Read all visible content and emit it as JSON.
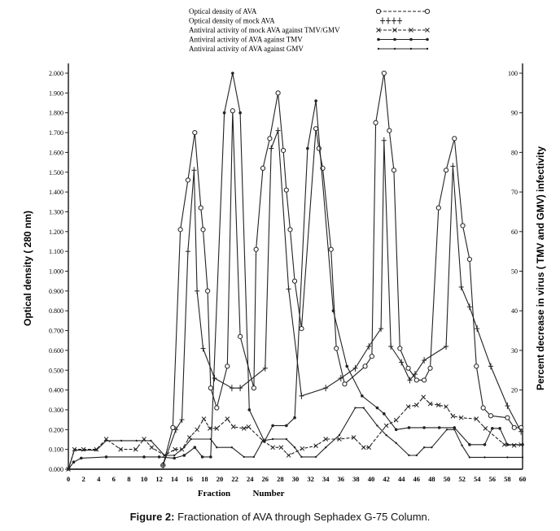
{
  "caption": {
    "label": "Figure 2:",
    "text": "Fractionation of AVA through Sephadex G-75 Column."
  },
  "chart_data": {
    "type": "line",
    "title": "",
    "xlabel": "Fraction Number",
    "xlabel_parts": [
      "Fraction",
      "Number"
    ],
    "ylabel": "Optical density ( 280 nm)",
    "y2label": "Percent decrease in virus ( TMV and GMV) infectivity",
    "xlim": [
      0,
      60
    ],
    "ylim": [
      0,
      2.0
    ],
    "y2lim": [
      0,
      100
    ],
    "x_ticks": [
      "0",
      "2",
      "4",
      "6",
      "8",
      "10",
      "12",
      "14",
      "16",
      "18",
      "20",
      "22",
      "24",
      "26",
      "28",
      "30",
      "32",
      "34",
      "36",
      "38",
      "40",
      "42",
      "44",
      "46",
      "48",
      "50",
      "52",
      "54",
      "56",
      "58",
      "60"
    ],
    "y_ticks": [
      "0.000",
      "0.100",
      "0.200",
      "0.300",
      "0.400",
      "0.500",
      "0.600",
      "0.700",
      "0.800",
      "0.900",
      "1.000",
      "1.100",
      "1.200",
      "1.300",
      "1.400",
      "1.500",
      "1.600",
      "1.700",
      "1.800",
      "1.900",
      "2.000"
    ],
    "y2_ticks": [
      "20",
      "30",
      "40",
      "50",
      "60",
      "70",
      "80",
      "90",
      "100"
    ],
    "legend_position": "top",
    "grid": false,
    "series": [
      {
        "name": "Optical density of AVA",
        "axis": "left",
        "marker": "circle",
        "dash": false,
        "points": [
          [
            12.5,
            0.02
          ],
          [
            13.8,
            0.21
          ],
          [
            14.8,
            1.21
          ],
          [
            15.8,
            1.46
          ],
          [
            16.7,
            1.7
          ],
          [
            17.5,
            1.32
          ],
          [
            17.8,
            1.21
          ],
          [
            18.4,
            0.9
          ],
          [
            18.8,
            0.41
          ],
          [
            19.6,
            0.31
          ],
          [
            21,
            0.52
          ],
          [
            21.7,
            1.81
          ],
          [
            22.7,
            0.67
          ],
          [
            24.5,
            0.41
          ],
          [
            24.8,
            1.11
          ],
          [
            25.7,
            1.52
          ],
          [
            26.6,
            1.67
          ],
          [
            27.7,
            1.9
          ],
          [
            28.4,
            1.61
          ],
          [
            28.8,
            1.41
          ],
          [
            29.3,
            1.21
          ],
          [
            29.9,
            0.95
          ],
          [
            30.8,
            0.71
          ],
          [
            32.7,
            1.72
          ],
          [
            33.1,
            1.62
          ],
          [
            33.6,
            1.52
          ],
          [
            34.7,
            1.11
          ],
          [
            35.4,
            0.61
          ],
          [
            36.5,
            0.43
          ],
          [
            39.2,
            0.52
          ],
          [
            40.1,
            0.57
          ],
          [
            40.6,
            1.75
          ],
          [
            41.7,
            2.0
          ],
          [
            42.4,
            1.71
          ],
          [
            43,
            1.51
          ],
          [
            43.8,
            0.61
          ],
          [
            44.9,
            0.51
          ],
          [
            46,
            0.45
          ],
          [
            47,
            0.45
          ],
          [
            47.8,
            0.51
          ],
          [
            48.9,
            1.32
          ],
          [
            49.9,
            1.51
          ],
          [
            51,
            1.67
          ],
          [
            52.1,
            1.23
          ],
          [
            53,
            1.06
          ],
          [
            53.9,
            0.52
          ],
          [
            54.8,
            0.31
          ],
          [
            55.8,
            0.27
          ],
          [
            58,
            0.26
          ],
          [
            58.9,
            0.21
          ],
          [
            59.8,
            0.21
          ]
        ]
      },
      {
        "name": "Optical density of mock AVA",
        "axis": "left",
        "marker": "plus",
        "dash": false,
        "points": [
          [
            12.5,
            0.02
          ],
          [
            14.2,
            0.2
          ],
          [
            15,
            0.25
          ],
          [
            15.8,
            1.1
          ],
          [
            16.6,
            1.51
          ],
          [
            17,
            0.9
          ],
          [
            17.8,
            0.61
          ],
          [
            19.3,
            0.46
          ],
          [
            21.6,
            0.41
          ],
          [
            22.7,
            0.41
          ],
          [
            26,
            0.51
          ],
          [
            26.8,
            1.62
          ],
          [
            27.7,
            1.71
          ],
          [
            29.1,
            0.91
          ],
          [
            30.8,
            0.37
          ],
          [
            34,
            0.41
          ],
          [
            36,
            0.46
          ],
          [
            37.9,
            0.51
          ],
          [
            39.7,
            0.62
          ],
          [
            41.3,
            0.71
          ],
          [
            41.7,
            1.66
          ],
          [
            42.6,
            0.62
          ],
          [
            44,
            0.54
          ],
          [
            45.1,
            0.45
          ],
          [
            45.8,
            0.48
          ],
          [
            47,
            0.55
          ],
          [
            49.9,
            0.62
          ],
          [
            50.8,
            1.53
          ],
          [
            51.9,
            0.92
          ],
          [
            53,
            0.82
          ],
          [
            54,
            0.71
          ],
          [
            55.8,
            0.52
          ],
          [
            58,
            0.32
          ],
          [
            59.8,
            0.19
          ]
        ]
      },
      {
        "name": "Antiviral activity of mock AVA against TMV/GMV",
        "axis": "right",
        "marker": "x",
        "dash": true,
        "points": [
          [
            0,
            0
          ],
          [
            0.8,
            5
          ],
          [
            2,
            5
          ],
          [
            3.7,
            5
          ],
          [
            5,
            7.6
          ],
          [
            6.9,
            5
          ],
          [
            8.9,
            5
          ],
          [
            10,
            7.6
          ],
          [
            11,
            5.5
          ],
          [
            12.7,
            3.5
          ],
          [
            14.1,
            5
          ],
          [
            15,
            5
          ],
          [
            16,
            8
          ],
          [
            17,
            10
          ],
          [
            17.9,
            12.7
          ],
          [
            18.7,
            10.3
          ],
          [
            19.6,
            10.3
          ],
          [
            21,
            12.7
          ],
          [
            21.8,
            10.7
          ],
          [
            23.2,
            10.3
          ],
          [
            23.8,
            10.7
          ],
          [
            25.7,
            7.2
          ],
          [
            27,
            5.5
          ],
          [
            28.1,
            5.5
          ],
          [
            29.1,
            3.5
          ],
          [
            30.9,
            5.2
          ],
          [
            32.7,
            5.9
          ],
          [
            34,
            7.6
          ],
          [
            35.8,
            7.6
          ],
          [
            37.7,
            8
          ],
          [
            39,
            5.5
          ],
          [
            39.7,
            5.5
          ],
          [
            42,
            11
          ],
          [
            43.3,
            12.4
          ],
          [
            44.9,
            15.8
          ],
          [
            46,
            16.2
          ],
          [
            46.9,
            18.2
          ],
          [
            47.8,
            16.5
          ],
          [
            48.9,
            16.2
          ],
          [
            49.9,
            15.8
          ],
          [
            50.8,
            13.4
          ],
          [
            51.9,
            13
          ],
          [
            53.9,
            12.7
          ],
          [
            55.1,
            10.3
          ],
          [
            57.6,
            6.2
          ],
          [
            58.9,
            6
          ],
          [
            59.8,
            6.2
          ]
        ]
      },
      {
        "name": "Antiviral activity of AVA against TMV",
        "axis": "right",
        "marker": "dot",
        "dash": false,
        "points": [
          [
            0,
            0
          ],
          [
            0.7,
            1.8
          ],
          [
            1.7,
            2.8
          ],
          [
            5,
            3.1
          ],
          [
            10,
            3.1
          ],
          [
            12,
            3.1
          ],
          [
            14,
            2.8
          ],
          [
            15.3,
            3.5
          ],
          [
            16.7,
            5.5
          ],
          [
            17.7,
            3.1
          ],
          [
            18.8,
            3.1
          ],
          [
            20.6,
            90
          ],
          [
            21.7,
            100
          ],
          [
            22.7,
            90
          ],
          [
            23.9,
            15
          ],
          [
            25.9,
            7
          ],
          [
            27,
            11
          ],
          [
            28.8,
            11
          ],
          [
            29.9,
            13
          ],
          [
            31.6,
            81
          ],
          [
            32.7,
            93
          ],
          [
            35,
            40
          ],
          [
            36.8,
            26
          ],
          [
            38.8,
            18.5
          ],
          [
            40.8,
            15.5
          ],
          [
            41.7,
            14
          ],
          [
            43.3,
            10
          ],
          [
            45,
            10.5
          ],
          [
            47,
            10.5
          ],
          [
            49,
            10.5
          ],
          [
            51,
            10.5
          ],
          [
            53,
            6.2
          ],
          [
            55,
            6.2
          ],
          [
            56,
            10.3
          ],
          [
            57,
            10.3
          ],
          [
            58,
            6.2
          ],
          [
            60,
            6.2
          ]
        ]
      },
      {
        "name": "Antiviral activity of AVA against GMV",
        "axis": "right",
        "marker": "smalldot",
        "dash": false,
        "points": [
          [
            0,
            0
          ],
          [
            0.8,
            4.8
          ],
          [
            2,
            4.8
          ],
          [
            3.7,
            4.8
          ],
          [
            5,
            7.2
          ],
          [
            7,
            7.2
          ],
          [
            9,
            7.2
          ],
          [
            10.9,
            7.2
          ],
          [
            12.7,
            3.5
          ],
          [
            14,
            3.5
          ],
          [
            15.3,
            5.5
          ],
          [
            16.2,
            7.6
          ],
          [
            18.8,
            7.6
          ],
          [
            19.6,
            5.5
          ],
          [
            21.6,
            5.5
          ],
          [
            23.2,
            3.1
          ],
          [
            24.5,
            3.1
          ],
          [
            25.7,
            7.2
          ],
          [
            27,
            7.6
          ],
          [
            28.8,
            7.6
          ],
          [
            29.9,
            5.5
          ],
          [
            30.8,
            3.1
          ],
          [
            32.7,
            3.1
          ],
          [
            34,
            5.5
          ],
          [
            35.8,
            8.6
          ],
          [
            37.9,
            15.5
          ],
          [
            39,
            15.5
          ],
          [
            40.8,
            11
          ],
          [
            42,
            8.6
          ],
          [
            43.3,
            6.6
          ],
          [
            45,
            3.5
          ],
          [
            46,
            3.5
          ],
          [
            47,
            5.5
          ],
          [
            48,
            5.5
          ],
          [
            50,
            10
          ],
          [
            51,
            10
          ],
          [
            52,
            6
          ],
          [
            53,
            3
          ],
          [
            55,
            3
          ],
          [
            58,
            3
          ],
          [
            60,
            3
          ]
        ]
      }
    ]
  }
}
